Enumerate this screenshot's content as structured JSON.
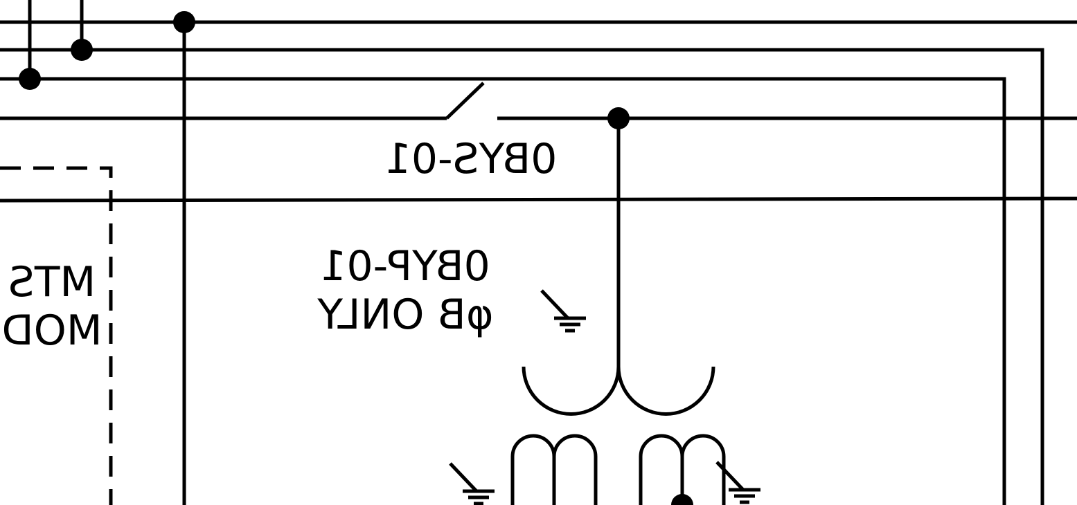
{
  "diagram": {
    "switch_label": "0BYS-01",
    "transformer_label_line1": "0BYP-01",
    "transformer_label_line2": "φB ONLY",
    "module_label_line1": "MTS",
    "module_label_line2": "MOD",
    "text_mirrored": true
  },
  "colors": {
    "ink": "#000000",
    "background": "#ffffff"
  }
}
